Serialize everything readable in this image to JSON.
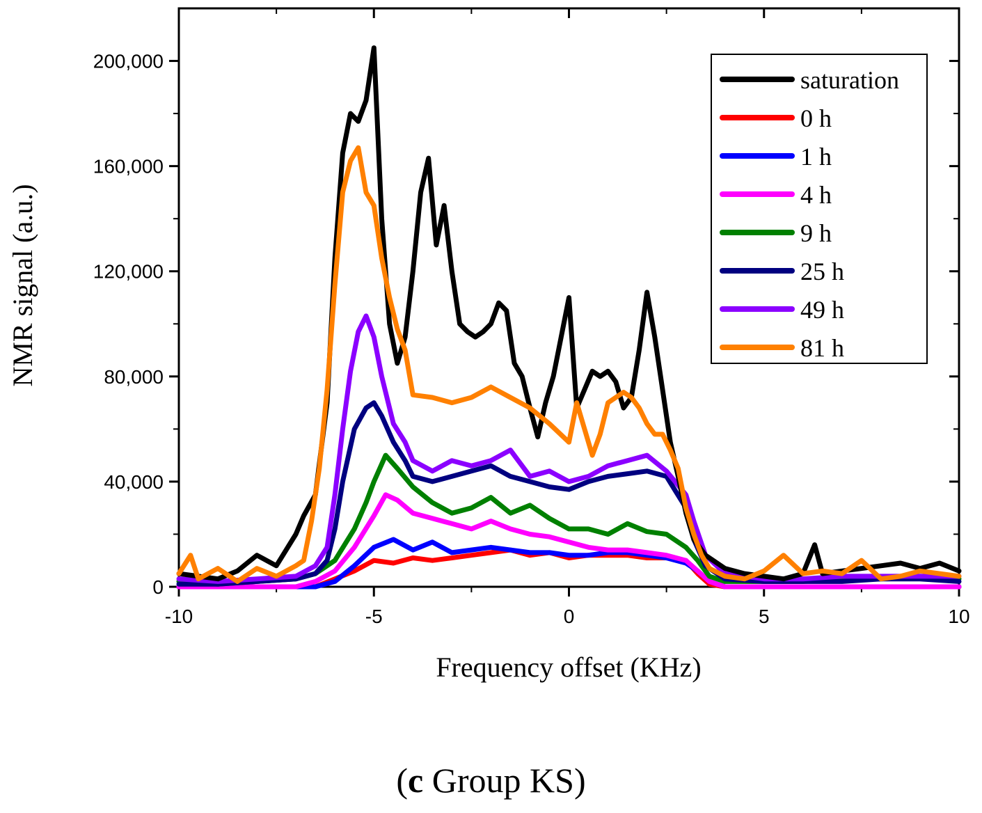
{
  "chart_data": {
    "type": "line",
    "xlabel": "Frequency offset (KHz)",
    "ylabel": "NMR signal (a.u.)",
    "xlim": [
      -10,
      10
    ],
    "ylim": [
      0,
      220000
    ],
    "x_ticks": [
      -10,
      -5,
      0,
      5,
      10
    ],
    "x_tick_labels": [
      "-10",
      "-5",
      "0",
      "5",
      "10"
    ],
    "y_ticks": [
      0,
      40000,
      80000,
      120000,
      160000,
      200000
    ],
    "y_tick_labels": [
      "0",
      "40,000",
      "80,000",
      "120,000",
      "160,000",
      "200,000"
    ],
    "grid": false,
    "legend_position": "top-right",
    "series": [
      {
        "name": "saturation",
        "color": "#000000",
        "x": [
          -10,
          -9.5,
          -9,
          -8.5,
          -8,
          -7.5,
          -7,
          -6.8,
          -6.5,
          -6.2,
          -6,
          -5.8,
          -5.6,
          -5.4,
          -5.2,
          -5,
          -4.8,
          -4.6,
          -4.4,
          -4.2,
          -4,
          -3.8,
          -3.6,
          -3.4,
          -3.2,
          -3,
          -2.8,
          -2.6,
          -2.4,
          -2.2,
          -2,
          -1.8,
          -1.6,
          -1.4,
          -1.2,
          -1,
          -0.8,
          -0.6,
          -0.4,
          -0.2,
          0,
          0.2,
          0.4,
          0.6,
          0.8,
          1,
          1.2,
          1.4,
          1.6,
          1.8,
          2,
          2.2,
          2.4,
          2.6,
          2.8,
          3,
          3.2,
          3.5,
          4,
          4.5,
          5,
          5.5,
          6,
          6.3,
          6.5,
          7,
          7.5,
          8,
          8.5,
          9,
          9.5,
          10
        ],
        "y": [
          5000,
          4000,
          3000,
          6000,
          12000,
          8000,
          20000,
          27000,
          35000,
          70000,
          125000,
          165000,
          180000,
          177000,
          185000,
          205000,
          140000,
          100000,
          85000,
          95000,
          120000,
          150000,
          163000,
          130000,
          145000,
          120000,
          100000,
          97000,
          95000,
          97000,
          100000,
          108000,
          105000,
          85000,
          80000,
          68000,
          57000,
          70000,
          80000,
          95000,
          110000,
          68000,
          75000,
          82000,
          80000,
          82000,
          78000,
          68000,
          72000,
          90000,
          112000,
          95000,
          75000,
          55000,
          42000,
          28000,
          18000,
          12000,
          7000,
          5000,
          4000,
          3000,
          5000,
          16000,
          5000,
          6000,
          7000,
          8000,
          9000,
          7000,
          9000,
          6000
        ]
      },
      {
        "name": "0 h",
        "color": "#ff0000",
        "x": [
          -10,
          -9,
          -8,
          -7,
          -6.5,
          -6,
          -5.5,
          -5,
          -4.5,
          -4,
          -3.5,
          -3,
          -2.5,
          -2,
          -1.5,
          -1,
          -0.5,
          0,
          0.5,
          1,
          1.5,
          2,
          2.5,
          3,
          3.3,
          3.6,
          4,
          5,
          6,
          7,
          8,
          9,
          10
        ],
        "y": [
          0,
          0,
          0,
          0,
          0,
          3000,
          6000,
          10000,
          9000,
          11000,
          10000,
          11000,
          12000,
          13000,
          14000,
          12000,
          13000,
          11000,
          12000,
          12000,
          12000,
          11000,
          11000,
          10000,
          5000,
          1000,
          0,
          0,
          0,
          0,
          0,
          0,
          0
        ]
      },
      {
        "name": "1 h",
        "color": "#0000ff",
        "x": [
          -10,
          -9,
          -8,
          -7,
          -6.5,
          -6,
          -5.5,
          -5,
          -4.5,
          -4,
          -3.5,
          -3,
          -2.5,
          -2,
          -1.5,
          -1,
          -0.5,
          0,
          0.5,
          1,
          1.5,
          2,
          2.5,
          3,
          3.3,
          3.6,
          4,
          5,
          6,
          7,
          8,
          9,
          10
        ],
        "y": [
          0,
          0,
          0,
          0,
          0,
          2000,
          8000,
          15000,
          18000,
          14000,
          17000,
          13000,
          14000,
          15000,
          14000,
          13000,
          13000,
          12000,
          12000,
          13000,
          13000,
          12000,
          11000,
          9000,
          6000,
          2000,
          0,
          0,
          0,
          0,
          0,
          0,
          0
        ]
      },
      {
        "name": "4 h",
        "color": "#ff00ff",
        "x": [
          -10,
          -9,
          -8,
          -7,
          -6.5,
          -6,
          -5.5,
          -5,
          -4.7,
          -4.4,
          -4,
          -3.5,
          -3,
          -2.5,
          -2,
          -1.5,
          -1,
          -0.5,
          0,
          0.5,
          1,
          1.5,
          2,
          2.5,
          3,
          3.3,
          3.6,
          4,
          5,
          6,
          7,
          8,
          9,
          10
        ],
        "y": [
          0,
          0,
          0,
          0,
          2000,
          6000,
          15000,
          27000,
          35000,
          33000,
          28000,
          26000,
          24000,
          22000,
          25000,
          22000,
          20000,
          19000,
          17000,
          15000,
          14000,
          14000,
          13000,
          12000,
          10000,
          6000,
          2000,
          0,
          0,
          0,
          0,
          0,
          0,
          0
        ]
      },
      {
        "name": "9 h",
        "color": "#008000",
        "x": [
          -10,
          -9,
          -8,
          -7,
          -6.5,
          -6,
          -5.5,
          -5.2,
          -5,
          -4.7,
          -4.4,
          -4,
          -3.5,
          -3,
          -2.5,
          -2,
          -1.5,
          -1,
          -0.5,
          0,
          0.5,
          1,
          1.5,
          2,
          2.5,
          3,
          3.3,
          3.6,
          4,
          5,
          6,
          7,
          8,
          9,
          10
        ],
        "y": [
          2000,
          1000,
          2000,
          3000,
          5000,
          10000,
          22000,
          32000,
          40000,
          50000,
          45000,
          38000,
          32000,
          28000,
          30000,
          34000,
          28000,
          31000,
          26000,
          22000,
          22000,
          20000,
          24000,
          21000,
          20000,
          15000,
          10000,
          4000,
          2000,
          2000,
          2000,
          3000,
          3000,
          4000,
          3000
        ]
      },
      {
        "name": "25 h",
        "color": "#000080",
        "x": [
          -10,
          -9,
          -8,
          -7,
          -6.5,
          -6.2,
          -6,
          -5.8,
          -5.5,
          -5.2,
          -5,
          -4.8,
          -4.5,
          -4.2,
          -4,
          -3.5,
          -3,
          -2.5,
          -2,
          -1.5,
          -1,
          -0.5,
          0,
          0.5,
          1,
          1.5,
          2,
          2.5,
          3,
          3.2,
          3.5,
          4,
          5,
          6,
          7,
          8,
          9,
          10
        ],
        "y": [
          1000,
          1000,
          2000,
          3000,
          5000,
          10000,
          22000,
          40000,
          60000,
          68000,
          70000,
          65000,
          55000,
          48000,
          42000,
          40000,
          42000,
          44000,
          46000,
          42000,
          40000,
          38000,
          37000,
          40000,
          42000,
          43000,
          44000,
          42000,
          30000,
          18000,
          8000,
          3000,
          2000,
          2000,
          2000,
          3000,
          3000,
          2000
        ]
      },
      {
        "name": "49 h",
        "color": "#8b00ff",
        "x": [
          -10,
          -9,
          -8,
          -7,
          -6.5,
          -6.2,
          -6,
          -5.8,
          -5.6,
          -5.4,
          -5.2,
          -5,
          -4.8,
          -4.5,
          -4.2,
          -4,
          -3.5,
          -3,
          -2.5,
          -2,
          -1.5,
          -1,
          -0.5,
          0,
          0.5,
          1,
          1.5,
          2,
          2.5,
          3,
          3.2,
          3.5,
          4,
          5,
          6,
          7,
          8,
          9,
          10
        ],
        "y": [
          3000,
          2000,
          3000,
          4000,
          8000,
          15000,
          35000,
          60000,
          82000,
          97000,
          103000,
          95000,
          80000,
          62000,
          55000,
          48000,
          44000,
          48000,
          46000,
          48000,
          52000,
          42000,
          44000,
          40000,
          42000,
          46000,
          48000,
          50000,
          44000,
          35000,
          25000,
          12000,
          5000,
          3000,
          3000,
          4000,
          4000,
          4000,
          4000
        ]
      },
      {
        "name": "81 h",
        "color": "#ff8000",
        "x": [
          -10,
          -9.7,
          -9.5,
          -9,
          -8.5,
          -8,
          -7.5,
          -7,
          -6.8,
          -6.6,
          -6.4,
          -6.2,
          -6,
          -5.8,
          -5.6,
          -5.4,
          -5.2,
          -5,
          -4.8,
          -4.6,
          -4.4,
          -4.2,
          -4,
          -3.5,
          -3,
          -2.5,
          -2,
          -1.5,
          -1,
          -0.5,
          0,
          0.2,
          0.4,
          0.6,
          0.8,
          1,
          1.2,
          1.4,
          1.6,
          1.8,
          2,
          2.2,
          2.4,
          2.6,
          2.8,
          3,
          3.2,
          3.4,
          3.6,
          4,
          4.5,
          5,
          5.5,
          6,
          6.5,
          7,
          7.5,
          8,
          8.5,
          9,
          9.5,
          10
        ],
        "y": [
          5000,
          12000,
          3000,
          7000,
          2000,
          7000,
          4000,
          8000,
          10000,
          25000,
          45000,
          75000,
          115000,
          150000,
          162000,
          167000,
          150000,
          145000,
          125000,
          110000,
          98000,
          90000,
          73000,
          72000,
          70000,
          72000,
          76000,
          72000,
          68000,
          62000,
          55000,
          70000,
          60000,
          50000,
          58000,
          70000,
          72000,
          74000,
          72000,
          68000,
          62000,
          58000,
          58000,
          52000,
          45000,
          30000,
          20000,
          12000,
          7000,
          4000,
          3000,
          6000,
          12000,
          5000,
          6000,
          5000,
          10000,
          3000,
          4000,
          6000,
          5000,
          4000
        ]
      }
    ]
  },
  "caption": {
    "label": "c",
    "text": " Group KS"
  }
}
